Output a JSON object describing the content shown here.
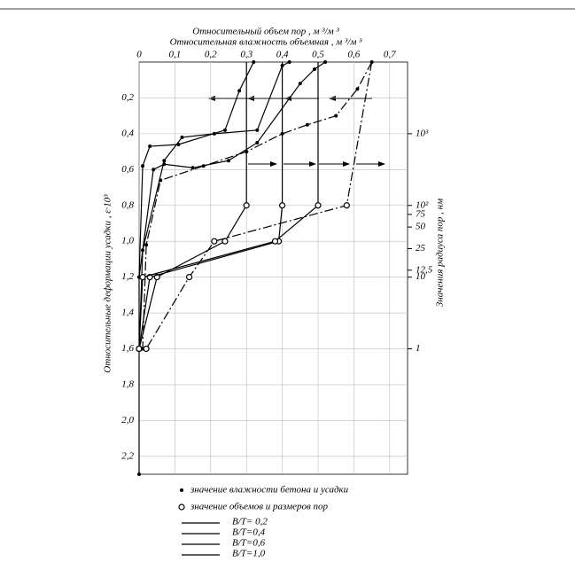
{
  "chart_data": {
    "type": "line",
    "title": "Относительный объем пор , м ³/м ³",
    "subtitle": "Относительная влажность объемная , м ³/м ³",
    "ylabel": "Относительные деформации усадки , ε·10³",
    "y2label": "Значения радиуса пор , нм",
    "xlim": [
      0,
      0.75
    ],
    "xticks": [
      0,
      {
        "value": 0.1,
        "label": "0,1"
      },
      {
        "value": 0.2,
        "label": "0,2"
      },
      {
        "value": 0.3,
        "label": "0,3"
      },
      {
        "value": 0.4,
        "label": "0,4"
      },
      {
        "value": 0.5,
        "label": "0,5"
      },
      {
        "value": 0.6,
        "label": "0,6"
      },
      {
        "value": 0.7,
        "label": "0,7"
      }
    ],
    "ylim": [
      0,
      2.3
    ],
    "yinverted": true,
    "yticks": [
      {
        "value": 0.2,
        "label": "0,2"
      },
      {
        "value": 0.4,
        "label": "0,4"
      },
      {
        "value": 0.6,
        "label": "0,6"
      },
      {
        "value": 0.8,
        "label": "0,8"
      },
      {
        "value": 1.0,
        "label": "1,0"
      },
      {
        "value": 1.2,
        "label": "1,2"
      },
      {
        "value": 1.4,
        "label": "1,4"
      },
      {
        "value": 1.6,
        "label": "1,6"
      },
      {
        "value": 1.8,
        "label": "1,8"
      },
      {
        "value": 2.0,
        "label": "2,0"
      },
      {
        "value": 2.2,
        "label": "2,2"
      }
    ],
    "y2lim": [
      10000,
      0.0178
    ],
    "y2scale": "log",
    "y2ticks": [
      {
        "value": 1000,
        "label": "10³"
      },
      {
        "value": 100,
        "label": "10²"
      },
      75,
      50,
      25,
      {
        "value": 12.5,
        "label": "12,5"
      },
      10,
      1
    ],
    "grid": true,
    "moisture_label": "значение влажности бетона и усадки",
    "pores_label": "значение объемов и размеров пор",
    "series": [
      {
        "name": "B/T= 0,2",
        "color": "#000000",
        "line_style": "solid",
        "moisture": {
          "x": [
            0.32,
            0.28,
            0.24,
            0.11,
            0.03,
            0.01,
            0,
            0
          ],
          "y": [
            0,
            0.16,
            0.38,
            0.46,
            0.47,
            0.58,
            1.2,
            2.3
          ]
        },
        "pores": {
          "x": [
            0.3,
            0.3,
            0.24,
            0.05,
            0
          ],
          "y": [
            0,
            0.8,
            1.0,
            1.2,
            1.6
          ]
        }
      },
      {
        "name": "B/T=0,4",
        "color": "#000000",
        "line_style": "solid",
        "moisture": {
          "x": [
            0.42,
            0.4,
            0.33,
            0.21,
            0.12,
            0.07,
            0.01,
            0
          ],
          "y": [
            0,
            0.02,
            0.38,
            0.4,
            0.42,
            0.55,
            1.05,
            1.6
          ]
        },
        "pores": {
          "x": [
            0.4,
            0.4,
            0.39,
            0.03,
            0
          ],
          "y": [
            0,
            0.8,
            1.0,
            1.2,
            1.6
          ]
        }
      },
      {
        "name": "B/T=0,6",
        "color": "#000000",
        "line_style": "solid",
        "moisture": {
          "x": [
            0.52,
            0.49,
            0.45,
            0.33,
            0.25,
            0.15,
            0.07,
            0.04,
            0
          ],
          "y": [
            0,
            0.04,
            0.12,
            0.45,
            0.55,
            0.59,
            0.57,
            0.6,
            1.2
          ]
        },
        "pores": {
          "x": [
            0.5,
            0.5,
            0.38,
            0.01,
            0
          ],
          "y": [
            0,
            0.8,
            1.0,
            1.2,
            1.6
          ]
        }
      },
      {
        "name": "B/T=1,0",
        "color": "#000000",
        "line_style": "dashdot",
        "moisture": {
          "x": [
            0.65,
            0.61,
            0.55,
            0.47,
            0.4,
            0.3,
            0.18,
            0.06,
            0.02,
            0.01
          ],
          "y": [
            0,
            0.15,
            0.3,
            0.35,
            0.4,
            0.5,
            0.58,
            0.66,
            1.02,
            1.6
          ]
        },
        "pores": {
          "x": [
            0.65,
            0.58,
            0.21,
            0.14,
            0.02
          ],
          "y": [
            0,
            0.8,
            1.0,
            1.2,
            1.6
          ]
        }
      }
    ]
  }
}
